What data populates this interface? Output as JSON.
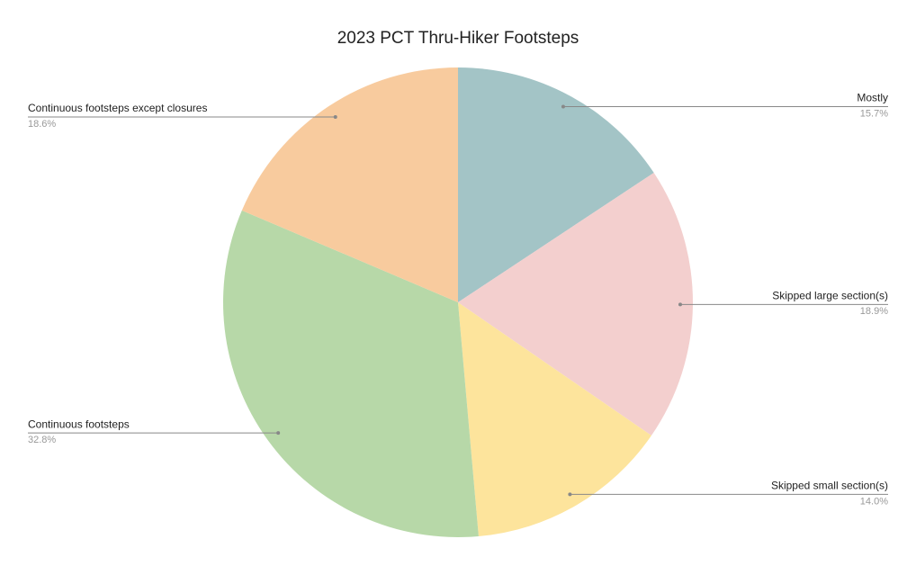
{
  "chart_data": {
    "type": "pie",
    "title": "2023 PCT Thru-Hiker Footsteps",
    "categories": [
      "Mostly",
      "Skipped large section(s)",
      "Skipped small section(s)",
      "Continuous footsteps",
      "Continuous footsteps except closures"
    ],
    "values": [
      15.7,
      18.9,
      14.0,
      32.8,
      18.6
    ],
    "value_labels": [
      "15.7%",
      "18.9%",
      "14.0%",
      "32.8%",
      "18.6%"
    ],
    "colors": [
      "#a3c4c6",
      "#f3cfce",
      "#fde49c",
      "#b7d8a8",
      "#f8cb9e"
    ]
  }
}
